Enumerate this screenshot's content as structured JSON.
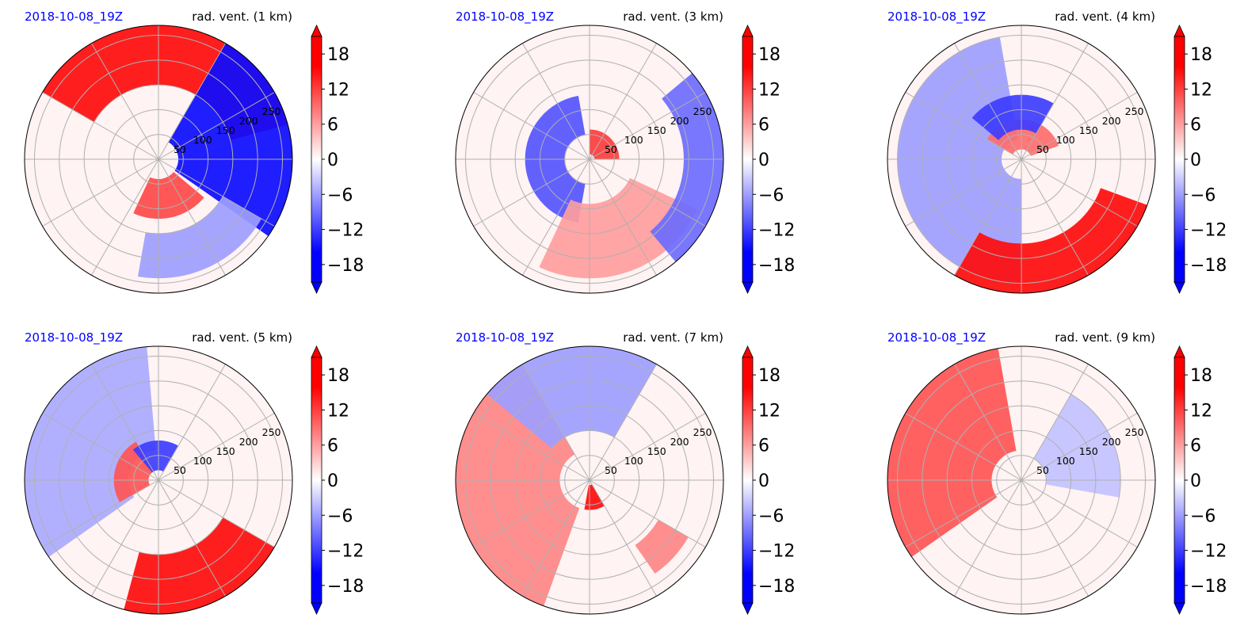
{
  "colors": {
    "negative": "#0000ff",
    "positive": "#ff0000",
    "neutral": "#ffffff",
    "date_text": "#0000ff",
    "grid": "#b0b0b0"
  },
  "colorbar": {
    "ticks": [
      "18",
      "12",
      "6",
      "0",
      "−6",
      "−12",
      "−18"
    ],
    "tick_values": [
      18,
      12,
      6,
      0,
      -6,
      -12,
      -18
    ],
    "range": [
      -21,
      21
    ],
    "extend": "both"
  },
  "chart_data": [
    {
      "type": "polar",
      "date": "2018-10-08_19Z",
      "title": "rad. vent. (1 km)",
      "r_ticks": [
        "50",
        "100",
        "150",
        "200",
        "250"
      ],
      "r_max": 270,
      "features": [
        {
          "sign": "positive",
          "from_deg": 15,
          "to_deg": 150,
          "r0": 150,
          "r1": 270,
          "value": 20
        },
        {
          "sign": "negative",
          "from_deg": -35,
          "to_deg": 60,
          "r0": 40,
          "r1": 270,
          "value": -20
        },
        {
          "sign": "positive",
          "from_deg": -115,
          "to_deg": -40,
          "r0": 40,
          "r1": 120,
          "value": 15
        },
        {
          "sign": "negative",
          "from_deg": -100,
          "to_deg": -30,
          "r0": 150,
          "r1": 240,
          "value": -8
        }
      ]
    },
    {
      "type": "polar",
      "date": "2018-10-08_19Z",
      "title": "rad. vent. (3 km)",
      "r_ticks": [
        "50",
        "100",
        "150",
        "200",
        "250"
      ],
      "r_max": 270,
      "features": [
        {
          "sign": "negative",
          "from_deg": 100,
          "to_deg": 260,
          "r0": 50,
          "r1": 130,
          "value": -14
        },
        {
          "sign": "positive",
          "from_deg": 0,
          "to_deg": 90,
          "r0": 10,
          "r1": 60,
          "value": 16
        },
        {
          "sign": "positive",
          "from_deg": -115,
          "to_deg": -25,
          "r0": 90,
          "r1": 240,
          "value": 8
        },
        {
          "sign": "negative",
          "from_deg": -50,
          "to_deg": 40,
          "r0": 190,
          "r1": 270,
          "value": -12
        }
      ]
    },
    {
      "type": "polar",
      "date": "2018-10-08_19Z",
      "title": "rad. vent. (4 km)",
      "r_ticks": [
        "50",
        "100",
        "150",
        "200",
        "250"
      ],
      "r_max": 270,
      "features": [
        {
          "sign": "negative",
          "from_deg": 100,
          "to_deg": 270,
          "r0": 40,
          "r1": 250,
          "value": -8
        },
        {
          "sign": "positive",
          "from_deg": -120,
          "to_deg": -20,
          "r0": 170,
          "r1": 270,
          "value": 20
        },
        {
          "sign": "positive",
          "from_deg": 20,
          "to_deg": 150,
          "r0": 20,
          "r1": 80,
          "value": 12
        },
        {
          "sign": "negative",
          "from_deg": 60,
          "to_deg": 140,
          "r0": 60,
          "r1": 130,
          "value": -16
        }
      ]
    },
    {
      "type": "polar",
      "date": "2018-10-08_19Z",
      "title": "rad. vent. (5 km)",
      "r_ticks": [
        "50",
        "100",
        "150",
        "200",
        "250"
      ],
      "r_max": 270,
      "features": [
        {
          "sign": "positive",
          "from_deg": -105,
          "to_deg": -30,
          "r0": 150,
          "r1": 270,
          "value": 20
        },
        {
          "sign": "negative",
          "from_deg": 95,
          "to_deg": 215,
          "r0": 60,
          "r1": 270,
          "value": -7
        },
        {
          "sign": "positive",
          "from_deg": 120,
          "to_deg": 210,
          "r0": 20,
          "r1": 90,
          "value": 14
        },
        {
          "sign": "negative",
          "from_deg": 60,
          "to_deg": 130,
          "r0": 20,
          "r1": 80,
          "value": -16
        }
      ]
    },
    {
      "type": "polar",
      "date": "2018-10-08_19Z",
      "title": "rad. vent. (7 km)",
      "r_ticks": [
        "50",
        "100",
        "150",
        "200",
        "250"
      ],
      "r_max": 270,
      "features": [
        {
          "sign": "positive",
          "from_deg": 120,
          "to_deg": 250,
          "r0": 60,
          "r1": 270,
          "value": 10
        },
        {
          "sign": "negative",
          "from_deg": 60,
          "to_deg": 140,
          "r0": 100,
          "r1": 270,
          "value": -8
        },
        {
          "sign": "positive",
          "from_deg": -100,
          "to_deg": -60,
          "r0": 10,
          "r1": 60,
          "value": 20
        },
        {
          "sign": "positive",
          "from_deg": -55,
          "to_deg": -30,
          "r0": 160,
          "r1": 230,
          "value": 10
        }
      ]
    },
    {
      "type": "polar",
      "date": "2018-10-08_19Z",
      "title": "rad. vent. (9 km)",
      "r_ticks": [
        "50",
        "100",
        "150",
        "200",
        "250"
      ],
      "r_max": 270,
      "features": [
        {
          "sign": "positive",
          "from_deg": 100,
          "to_deg": 215,
          "r0": 60,
          "r1": 270,
          "value": 14
        },
        {
          "sign": "negative",
          "from_deg": -10,
          "to_deg": 60,
          "r0": 50,
          "r1": 200,
          "value": -5
        }
      ]
    }
  ]
}
